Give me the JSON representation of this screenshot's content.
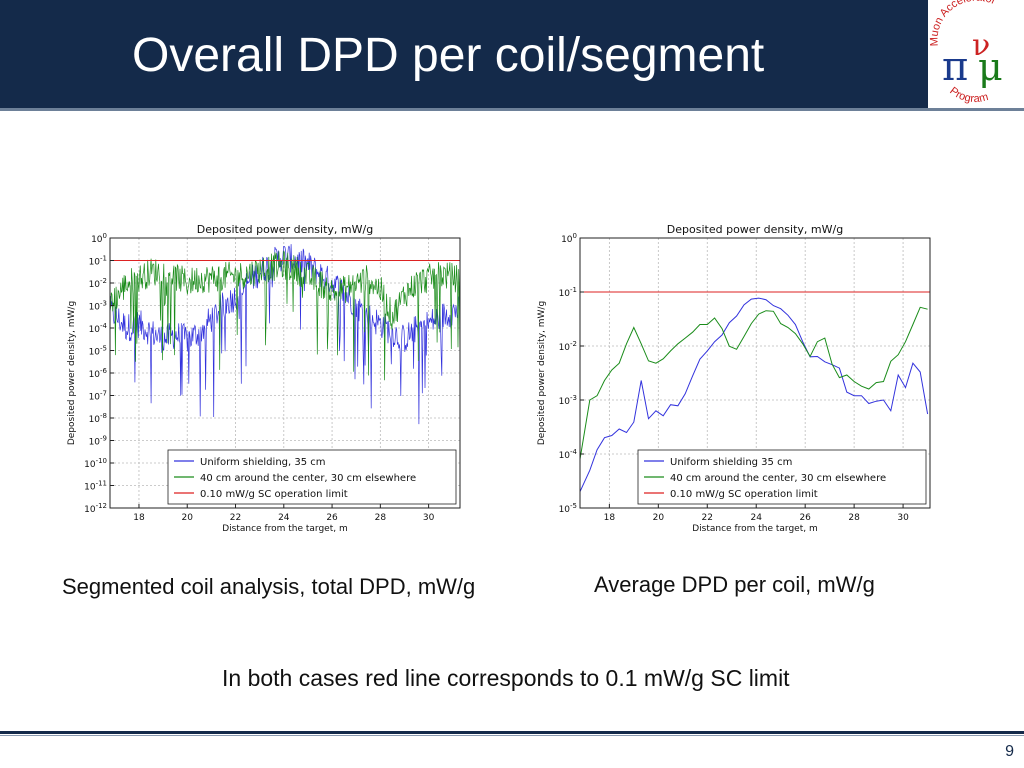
{
  "slide": {
    "title": "Overall DPD per coil/segment",
    "caption_left": "Segmented coil analysis, total DPD, mW/g",
    "caption_right": "Average DPD per coil, mW/g",
    "note": "In both cases red line corresponds to 0.1 mW/g SC limit",
    "page_number": "9",
    "logo": {
      "arc_text_top": "Muon Accelerator",
      "arc_text_bottom": "Program",
      "symbols": [
        "π",
        "ν",
        "μ"
      ]
    },
    "colors": {
      "header_bg": "#142a4a",
      "blue": "#3333dd",
      "green": "#1a8c1a",
      "red": "#dd2222"
    }
  },
  "chart_data": [
    {
      "type": "line",
      "title": "Deposited power density, mW/g",
      "xlabel": "Distance from the target, m",
      "ylabel": "Deposited power density, mW/g",
      "yscale": "log",
      "xlim": [
        16.8,
        31.3
      ],
      "ylim_exponent": [
        -12,
        0
      ],
      "xticks": [
        "18",
        "20",
        "22",
        "24",
        "26",
        "28",
        "30"
      ],
      "ytick_exponents": [
        "0",
        "-1",
        "-2",
        "-3",
        "-4",
        "-5",
        "-6",
        "-7",
        "-8",
        "-9",
        "-10",
        "-11",
        "-12"
      ],
      "grid": true,
      "legend_position": "lower-right",
      "noisy": true,
      "series": [
        {
          "name": "Uniform shielding, 35 cm",
          "color": "#3333dd",
          "x": [
            16.8,
            17.5,
            18.0,
            18.5,
            19.0,
            19.5,
            20.0,
            20.5,
            21.0,
            21.5,
            22.0,
            22.5,
            23.0,
            23.5,
            24.0,
            24.5,
            25.0,
            25.5,
            26.0,
            26.5,
            27.0,
            27.5,
            28.0,
            28.5,
            29.0,
            29.5,
            30.0,
            30.5,
            31.2
          ],
          "log10_y": [
            -3.2,
            -4.0,
            -3.8,
            -4.2,
            -4.5,
            -4.3,
            -4.5,
            -4.2,
            -3.6,
            -3.0,
            -2.6,
            -2.0,
            -1.5,
            -1.1,
            -0.8,
            -1.0,
            -1.2,
            -1.6,
            -2.0,
            -2.4,
            -3.0,
            -3.5,
            -3.8,
            -4.2,
            -4.5,
            -4.0,
            -3.8,
            -3.5,
            -3.2
          ]
        },
        {
          "name": "40 cm around the center, 30 cm elsewhere",
          "color": "#1a8c1a",
          "x": [
            16.8,
            17.5,
            18.0,
            18.5,
            19.0,
            19.5,
            20.0,
            20.5,
            21.0,
            21.5,
            22.0,
            22.5,
            23.0,
            23.5,
            24.0,
            24.5,
            25.0,
            25.5,
            26.0,
            26.5,
            27.0,
            27.5,
            28.0,
            28.5,
            29.0,
            29.5,
            30.0,
            30.5,
            31.2
          ],
          "log10_y": [
            -3.0,
            -2.0,
            -1.8,
            -1.5,
            -1.5,
            -1.7,
            -2.0,
            -1.8,
            -1.8,
            -1.7,
            -1.7,
            -1.6,
            -1.4,
            -1.3,
            -1.2,
            -1.4,
            -1.7,
            -2.0,
            -2.4,
            -2.3,
            -2.0,
            -1.8,
            -2.3,
            -3.5,
            -2.5,
            -2.0,
            -1.8,
            -1.6,
            -1.8
          ]
        },
        {
          "name": "0.10 mW/g SC operation limit",
          "color": "#dd2222",
          "x": [
            16.8,
            31.3
          ],
          "log10_y": [
            -1,
            -1
          ]
        }
      ]
    },
    {
      "type": "line",
      "title": "Deposited power density, mW/g",
      "xlabel": "Distance from the target, m",
      "ylabel": "Deposited power density, mW/g",
      "yscale": "log",
      "xlim": [
        16.8,
        31.1
      ],
      "ylim_exponent": [
        -5,
        0
      ],
      "xticks": [
        "18",
        "20",
        "22",
        "24",
        "26",
        "28",
        "30"
      ],
      "ytick_exponents": [
        "0",
        "-1",
        "-2",
        "-3",
        "-4",
        "-5"
      ],
      "grid": true,
      "legend_position": "lower-right",
      "series": [
        {
          "name": "Uniform shielding 35 cm",
          "color": "#3333dd",
          "x": [
            16.8,
            17.2,
            17.5,
            17.8,
            18.1,
            18.4,
            18.7,
            19.0,
            19.3,
            19.6,
            19.9,
            20.2,
            20.5,
            20.8,
            21.1,
            21.4,
            21.7,
            22.0,
            22.3,
            22.6,
            22.9,
            23.2,
            23.5,
            23.8,
            24.1,
            24.4,
            24.7,
            25.0,
            25.3,
            25.6,
            25.9,
            26.2,
            26.5,
            26.8,
            27.1,
            27.4,
            27.7,
            28.0,
            28.3,
            28.6,
            28.9,
            29.2,
            29.5,
            29.8,
            30.1,
            30.4,
            30.7,
            31.0
          ],
          "y": [
            2e-05,
            5e-05,
            0.00012,
            0.0002,
            0.00022,
            0.00029,
            0.00025,
            0.00039,
            0.0023,
            0.00045,
            0.00063,
            0.00051,
            0.00082,
            0.00078,
            0.0013,
            0.0028,
            0.0057,
            0.0081,
            0.012,
            0.016,
            0.027,
            0.036,
            0.058,
            0.074,
            0.077,
            0.072,
            0.056,
            0.049,
            0.037,
            0.025,
            0.012,
            0.0063,
            0.0064,
            0.0051,
            0.0045,
            0.0039,
            0.0014,
            0.0012,
            0.0012,
            0.00086,
            0.00095,
            0.001,
            0.00063,
            0.0029,
            0.0017,
            0.0048,
            0.0033,
            0.00055
          ]
        },
        {
          "name": "40 cm around the center, 30 cm elsewhere",
          "color": "#1a8c1a",
          "x": [
            16.8,
            17.2,
            17.5,
            17.8,
            18.1,
            18.4,
            18.7,
            19.0,
            19.3,
            19.6,
            19.9,
            20.2,
            20.5,
            20.8,
            21.1,
            21.4,
            21.7,
            22.0,
            22.3,
            22.6,
            22.9,
            23.2,
            23.5,
            23.8,
            24.1,
            24.4,
            24.7,
            25.0,
            25.3,
            25.6,
            25.9,
            26.2,
            26.5,
            26.8,
            27.1,
            27.4,
            27.7,
            28.0,
            28.3,
            28.6,
            28.9,
            29.2,
            29.5,
            29.8,
            30.1,
            30.4,
            30.7,
            31.0
          ],
          "y": [
            8e-05,
            0.001,
            0.0012,
            0.0023,
            0.0036,
            0.0048,
            0.011,
            0.022,
            0.011,
            0.0053,
            0.0048,
            0.0058,
            0.0081,
            0.011,
            0.014,
            0.018,
            0.025,
            0.025,
            0.033,
            0.021,
            0.0099,
            0.0087,
            0.015,
            0.026,
            0.039,
            0.045,
            0.044,
            0.026,
            0.022,
            0.017,
            0.011,
            0.0064,
            0.012,
            0.014,
            0.0046,
            0.0026,
            0.0029,
            0.0022,
            0.0018,
            0.0016,
            0.0021,
            0.0022,
            0.0052,
            0.0069,
            0.012,
            0.025,
            0.052,
            0.048
          ]
        },
        {
          "name": "0.10 mW/g SC operation limit",
          "color": "#dd2222",
          "x": [
            16.8,
            31.1
          ],
          "y": [
            0.1,
            0.1
          ]
        }
      ]
    }
  ]
}
